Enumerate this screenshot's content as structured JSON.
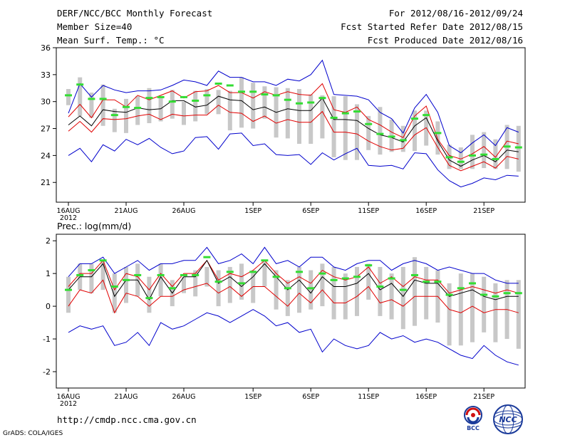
{
  "header": {
    "left": [
      "DERF/NCC/BCC Monthly Forecast",
      "Member Size=40",
      "Mean Surf. Temp.: °C"
    ],
    "right": [
      "For 2012/08/16-2012/09/24",
      "Fcst Started Refer Date 2012/08/15",
      "Fcst Produced Date 2012/08/16"
    ]
  },
  "footer": {
    "url": "http://cmdp.ncc.cma.gov.cn",
    "credit": "GrADS: COLA/IGES"
  },
  "logos": {
    "bcc_label": "BCC",
    "ncc_label": "NCC"
  },
  "colors": {
    "band": "#c8c8c8",
    "mean": "#000000",
    "inner": "#e00000",
    "outer": "#0000cc",
    "green": "#33dd33"
  },
  "chart_data": [
    {
      "type": "line",
      "title": "Mean Surf. Temp.: °C",
      "x_tick_labels": [
        "16AUG",
        "21AUG",
        "26AUG",
        "1SEP",
        "6SEP",
        "11SEP",
        "16SEP",
        "21SEP"
      ],
      "x_tick_days": [
        1,
        6,
        11,
        17,
        22,
        27,
        32,
        37
      ],
      "year_label": "2012",
      "y_ticks": [
        21,
        24,
        27,
        30,
        33,
        36
      ],
      "ylim": [
        18.8,
        36
      ],
      "x_days": [
        1,
        2,
        3,
        4,
        5,
        6,
        7,
        8,
        9,
        10,
        11,
        12,
        13,
        14,
        15,
        16,
        17,
        18,
        19,
        20,
        21,
        22,
        23,
        24,
        25,
        26,
        27,
        28,
        29,
        30,
        31,
        32,
        33,
        34,
        35,
        36,
        37,
        38,
        39,
        40
      ],
      "series": [
        {
          "name": "max",
          "values": [
            28.7,
            32.0,
            30.5,
            31.8,
            31.3,
            31.0,
            31.2,
            31.2,
            31.3,
            31.8,
            32.4,
            32.2,
            31.8,
            33.4,
            32.7,
            32.7,
            32.2,
            32.2,
            31.8,
            32.5,
            32.3,
            33.0,
            34.6,
            30.8,
            30.7,
            30.6,
            30.2,
            28.8,
            28.1,
            26.5,
            29.3,
            30.8,
            28.8,
            25.1,
            24.3,
            25.4,
            26.3,
            25.1,
            27.1,
            26.6
          ]
        },
        {
          "name": "upper",
          "values": [
            28.3,
            29.7,
            28.2,
            30.2,
            30.2,
            29.4,
            30.7,
            30.2,
            30.7,
            31.2,
            30.4,
            31.1,
            31.2,
            31.8,
            31.0,
            31.0,
            30.4,
            31.1,
            30.7,
            31.1,
            30.8,
            30.7,
            32.0,
            29.1,
            28.8,
            29.4,
            28.0,
            27.4,
            26.6,
            26.0,
            28.4,
            29.5,
            25.8,
            24.0,
            23.6,
            24.2,
            25.0,
            23.8,
            25.6,
            25.3
          ]
        },
        {
          "name": "mean",
          "values": [
            27.4,
            28.4,
            27.3,
            29.1,
            28.9,
            28.8,
            29.3,
            29.1,
            29.2,
            30.1,
            30.1,
            29.4,
            29.6,
            30.6,
            30.2,
            30.1,
            29.1,
            29.4,
            28.8,
            29.2,
            29.0,
            29.0,
            30.4,
            28.0,
            28.0,
            27.9,
            27.0,
            26.3,
            26.0,
            25.5,
            27.3,
            28.2,
            25.6,
            23.5,
            22.8,
            23.5,
            24.0,
            23.3,
            24.6,
            24.4
          ]
        },
        {
          "name": "lower",
          "values": [
            26.7,
            27.8,
            26.6,
            28.1,
            28.0,
            28.1,
            28.4,
            28.6,
            28.0,
            28.6,
            28.4,
            28.5,
            28.5,
            29.6,
            28.8,
            28.7,
            27.8,
            28.4,
            27.6,
            28.0,
            27.7,
            27.7,
            28.9,
            26.6,
            26.6,
            26.4,
            25.6,
            25.0,
            24.6,
            24.8,
            26.3,
            27.1,
            24.9,
            22.9,
            22.3,
            22.8,
            23.3,
            22.6,
            23.9,
            23.6
          ]
        },
        {
          "name": "min",
          "values": [
            24.0,
            24.8,
            23.3,
            25.2,
            24.5,
            25.8,
            25.2,
            25.9,
            24.9,
            24.2,
            24.5,
            26.0,
            26.1,
            24.7,
            26.4,
            26.5,
            25.1,
            25.3,
            24.1,
            24.0,
            24.1,
            23.0,
            24.3,
            23.5,
            24.2,
            24.8,
            22.9,
            22.8,
            22.9,
            22.5,
            24.3,
            24.2,
            22.4,
            21.2,
            20.5,
            20.9,
            21.5,
            21.3,
            21.8,
            21.7
          ]
        },
        {
          "name": "ens_max",
          "values": [
            31.4,
            32.7,
            31.0,
            31.9,
            29.2,
            30.3,
            30.6,
            31.5,
            30.6,
            31.3,
            30.0,
            31.2,
            31.4,
            31.3,
            31.2,
            32.7,
            32.1,
            31.7,
            31.6,
            31.5,
            31.4,
            30.8,
            30.7,
            30.6,
            30.6,
            29.7,
            28.4,
            29.4,
            28.0,
            27.3,
            29.0,
            29.0,
            27.8,
            25.2,
            24.9,
            26.3,
            26.6,
            25.8,
            27.4,
            27.3
          ]
        },
        {
          "name": "ens_min",
          "values": [
            29.6,
            28.4,
            28.2,
            27.3,
            26.6,
            26.5,
            27.4,
            27.6,
            27.8,
            28.1,
            27.4,
            27.8,
            28.6,
            28.6,
            26.8,
            27.1,
            27.0,
            28.1,
            26.0,
            25.9,
            25.3,
            25.3,
            25.9,
            23.8,
            23.5,
            23.5,
            24.6,
            24.1,
            24.4,
            24.4,
            24.5,
            25.1,
            24.1,
            22.5,
            22.5,
            22.5,
            22.6,
            22.5,
            22.5,
            22.2
          ]
        },
        {
          "name": "obs",
          "values": [
            30.7,
            31.9,
            30.3,
            30.3,
            28.5,
            29.4,
            29.3,
            30.4,
            30.5,
            30.0,
            30.5,
            30.1,
            30.7,
            32.0,
            31.8,
            31.1,
            31.1,
            30.8,
            30.7,
            30.2,
            29.8,
            29.9,
            30.4,
            28.2,
            28.7,
            28.9,
            27.5,
            26.4,
            26.1,
            25.7,
            28.1,
            28.5,
            26.5,
            23.8,
            23.3,
            24.0,
            24.1,
            23.6,
            25.0,
            24.9
          ]
        }
      ]
    },
    {
      "type": "line",
      "title": "Prec.: log(mm/d)",
      "x_tick_labels": [
        "16AUG",
        "21AUG",
        "26AUG",
        "1SEP",
        "6SEP",
        "11SEP",
        "16SEP",
        "21SEP"
      ],
      "x_tick_days": [
        1,
        6,
        11,
        17,
        22,
        27,
        32,
        37
      ],
      "year_label": "2012",
      "y_ticks": [
        -2,
        -1,
        0,
        1,
        2
      ],
      "ylim": [
        -2.5,
        2.2
      ],
      "x_days": [
        1,
        2,
        3,
        4,
        5,
        6,
        7,
        8,
        9,
        10,
        11,
        12,
        13,
        14,
        15,
        16,
        17,
        18,
        19,
        20,
        21,
        22,
        23,
        24,
        25,
        26,
        27,
        28,
        29,
        30,
        31,
        32,
        33,
        34,
        35,
        36,
        37,
        38,
        39,
        40
      ],
      "series": [
        {
          "name": "max",
          "values": [
            0.9,
            1.3,
            1.3,
            1.5,
            1.0,
            1.2,
            1.4,
            1.1,
            1.3,
            1.3,
            1.4,
            1.4,
            1.8,
            1.3,
            1.4,
            1.6,
            1.3,
            1.8,
            1.3,
            1.4,
            1.2,
            1.5,
            1.5,
            1.2,
            1.1,
            1.3,
            1.4,
            1.4,
            1.1,
            1.3,
            1.4,
            1.3,
            1.1,
            1.2,
            1.1,
            1.0,
            1.0,
            0.8,
            0.7,
            0.7
          ]
        },
        {
          "name": "upper",
          "values": [
            0.6,
            1.0,
            1.0,
            1.4,
            0.5,
            1.0,
            0.9,
            0.5,
            1.0,
            0.6,
            1.0,
            1.0,
            1.4,
            0.8,
            1.0,
            0.9,
            1.1,
            1.4,
            1.0,
            0.7,
            0.9,
            0.7,
            1.1,
            0.9,
            0.8,
            0.9,
            1.2,
            0.7,
            0.9,
            0.6,
            0.9,
            0.8,
            0.8,
            0.4,
            0.5,
            0.6,
            0.5,
            0.4,
            0.5,
            0.4
          ]
        },
        {
          "name": "mean",
          "values": [
            0.5,
            0.9,
            0.9,
            1.3,
            0.3,
            0.8,
            0.8,
            0.2,
            0.9,
            0.4,
            0.9,
            0.9,
            1.4,
            0.7,
            0.9,
            0.6,
            0.9,
            1.3,
            0.9,
            0.5,
            0.8,
            0.4,
            0.9,
            0.6,
            0.6,
            0.7,
            1.0,
            0.5,
            0.7,
            0.3,
            0.8,
            0.7,
            0.7,
            0.3,
            0.4,
            0.5,
            0.3,
            0.2,
            0.3,
            0.3
          ]
        },
        {
          "name": "lower",
          "values": [
            0.0,
            0.5,
            0.4,
            0.8,
            -0.2,
            0.4,
            0.3,
            0.0,
            0.3,
            0.3,
            0.5,
            0.6,
            0.7,
            0.4,
            0.6,
            0.3,
            0.6,
            0.6,
            0.3,
            0.0,
            0.4,
            0.1,
            0.5,
            0.1,
            0.1,
            0.3,
            0.6,
            0.1,
            0.2,
            0.0,
            0.3,
            0.3,
            0.3,
            -0.1,
            -0.2,
            0.0,
            -0.2,
            -0.1,
            -0.1,
            -0.2
          ]
        },
        {
          "name": "min",
          "values": [
            -0.8,
            -0.6,
            -0.7,
            -0.6,
            -1.2,
            -1.1,
            -0.8,
            -1.2,
            -0.5,
            -0.7,
            -0.6,
            -0.4,
            -0.2,
            -0.3,
            -0.5,
            -0.3,
            -0.1,
            -0.3,
            -0.6,
            -0.5,
            -0.8,
            -0.7,
            -1.4,
            -1.0,
            -1.2,
            -1.3,
            -1.2,
            -0.8,
            -1.0,
            -0.9,
            -1.1,
            -1.0,
            -1.1,
            -1.3,
            -1.5,
            -1.6,
            -1.2,
            -1.5,
            -1.7,
            -1.8
          ]
        },
        {
          "name": "ens_max",
          "values": [
            0.9,
            1.3,
            1.3,
            1.4,
            1.0,
            1.2,
            1.3,
            0.9,
            1.3,
            0.8,
            0.9,
            1.1,
            1.2,
            1.1,
            1.2,
            1.3,
            1.1,
            1.4,
            1.1,
            0.8,
            1.2,
            1.1,
            1.3,
            1.2,
            1.0,
            1.2,
            1.3,
            1.2,
            1.0,
            1.2,
            1.5,
            1.2,
            1.1,
            0.7,
            1.0,
            1.0,
            0.9,
            0.7,
            0.8,
            0.8
          ]
        },
        {
          "name": "ens_min",
          "values": [
            -0.2,
            0.5,
            0.4,
            0.5,
            -0.2,
            0.1,
            0.3,
            -0.2,
            0.3,
            0.0,
            0.4,
            0.3,
            0.6,
            0.0,
            0.1,
            0.2,
            0.1,
            0.6,
            -0.1,
            -0.3,
            -0.2,
            -0.1,
            0.0,
            -0.4,
            -0.4,
            -0.3,
            0.2,
            -0.3,
            -0.4,
            -0.7,
            -0.6,
            -0.4,
            -0.5,
            -1.2,
            -1.2,
            -1.1,
            -0.8,
            -1.1,
            -1.0,
            -1.3
          ]
        },
        {
          "name": "obs",
          "values": [
            0.5,
            0.95,
            1.1,
            1.4,
            0.6,
            0.8,
            0.95,
            0.25,
            0.95,
            0.55,
            0.95,
            0.95,
            1.5,
            0.75,
            1.05,
            0.7,
            1.05,
            1.4,
            0.9,
            0.55,
            1.05,
            0.55,
            1.0,
            0.8,
            0.85,
            0.9,
            1.25,
            0.6,
            0.85,
            0.5,
            0.95,
            0.75,
            0.75,
            0.35,
            0.55,
            0.7,
            0.35,
            0.3,
            0.4,
            0.4
          ]
        }
      ]
    }
  ]
}
